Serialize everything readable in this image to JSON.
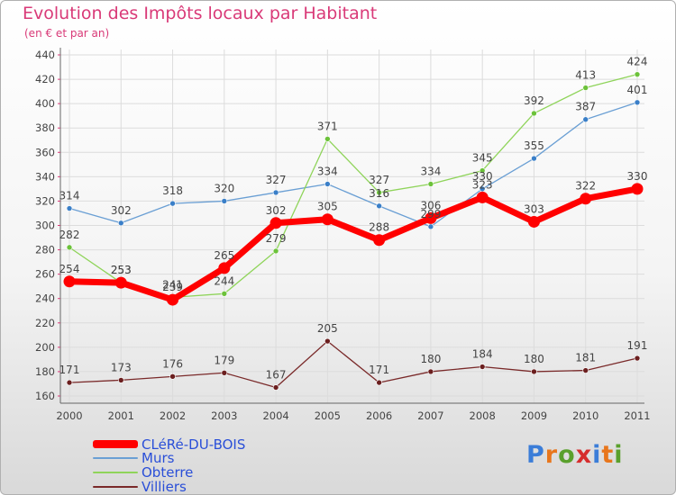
{
  "title": "Evolution des Impôts locaux par Habitant",
  "subtitle": "(en € et par an)",
  "logo": {
    "text": "Proxiti",
    "colors": [
      "#3b7dd8",
      "#e8761c",
      "#5aa02c",
      "#d62d2d",
      "#3b7dd8",
      "#e8761c",
      "#5aa02c"
    ]
  },
  "chart_data": {
    "type": "line",
    "x": [
      "2000",
      "2001",
      "2002",
      "2003",
      "2004",
      "2005",
      "2006",
      "2007",
      "2008",
      "2009",
      "2010",
      "2011"
    ],
    "ylim": [
      160,
      440
    ],
    "yticks": [
      160,
      180,
      200,
      220,
      240,
      260,
      280,
      300,
      320,
      340,
      360,
      380,
      400,
      420,
      440
    ],
    "grid": true,
    "legend_position": "bottom-left",
    "series": [
      {
        "name": "Murs",
        "color": "#6a9fd4",
        "marker_color": "#3a7fc8",
        "width": 1.3,
        "marker_r": 3,
        "values": [
          314,
          302,
          318,
          320,
          327,
          334,
          316,
          299,
          330,
          355,
          387,
          401
        ],
        "labels": [
          "314",
          "302",
          "318",
          "320",
          "327",
          "334",
          "316",
          "299",
          "330",
          "355",
          "387",
          "401"
        ]
      },
      {
        "name": "Obterre",
        "color": "#8fd45a",
        "marker_color": "#6cc23a",
        "width": 1.3,
        "marker_r": 3,
        "values": [
          282,
          253,
          241,
          244,
          279,
          371,
          327,
          334,
          345,
          392,
          413,
          424
        ],
        "labels": [
          "282",
          "253",
          "241",
          "244",
          "279",
          "371",
          "327",
          "334",
          "345",
          "392",
          "413",
          "424"
        ]
      },
      {
        "name": "Villiers",
        "color": "#7a2a2a",
        "marker_color": "#6b1f1f",
        "width": 1.3,
        "marker_r": 3,
        "values": [
          171,
          173,
          176,
          179,
          167,
          205,
          171,
          180,
          184,
          180,
          181,
          191
        ],
        "labels": [
          "171",
          "173",
          "176",
          "179",
          "167",
          "205",
          "171",
          "180",
          "184",
          "180",
          "181",
          "191"
        ]
      },
      {
        "name": "CLéRé-DU-BOIS",
        "color": "#ff0000",
        "marker_color": "#ff0000",
        "width": 7,
        "marker_r": 6.5,
        "values": [
          254,
          253,
          239,
          265,
          302,
          305,
          288,
          306,
          323,
          303,
          322,
          330
        ],
        "labels": [
          "254",
          "253",
          "239",
          "265",
          "302",
          "305",
          "288",
          "306",
          "323",
          "303",
          "322",
          "330"
        ]
      }
    ],
    "legend": [
      {
        "name": "CLéRé-DU-BOIS",
        "color": "#ff0000",
        "thick": true
      },
      {
        "name": "Murs",
        "color": "#6a9fd4",
        "thick": false
      },
      {
        "name": "Obterre",
        "color": "#8fd45a",
        "thick": false
      },
      {
        "name": "Villiers",
        "color": "#7a2a2a",
        "thick": false
      }
    ]
  }
}
